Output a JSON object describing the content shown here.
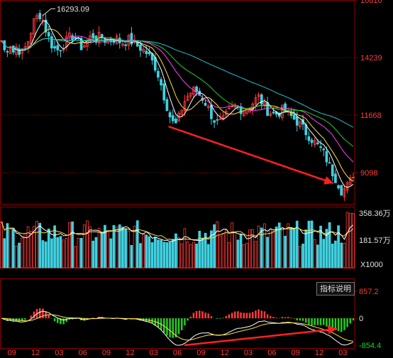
{
  "theme": {
    "background": "#000000",
    "frame": "#8b0000",
    "grid": "#8b0000",
    "up": "#ff3b3b",
    "down": "#40d0e0",
    "axis_text": "#ff3b3b",
    "axis_text_alt": "#e0e0e0",
    "arrow": "#ff2020",
    "ma_colors": [
      "#ffffff",
      "#ffe040",
      "#ff40ff",
      "#20d020",
      "#20c0d0"
    ],
    "macd_colors": [
      "#ffffff",
      "#ffe040"
    ],
    "hist_pos": "#ff3b3b",
    "hist_neg": "#20d020"
  },
  "indicator_button": {
    "label": "指标说明"
  },
  "chart_data": [
    {
      "type": "candlestick",
      "panel": "price",
      "y_ticks": [
        "16810",
        "14239",
        "11668",
        "9098"
      ],
      "y_tick_values": [
        16810,
        14239,
        11668,
        9098
      ],
      "ylim": [
        7700,
        16810
      ],
      "peak_label": "16293.09",
      "peak_value": 16293.09,
      "trend": [
        15000,
        14400,
        14950,
        14500,
        14800,
        14300,
        14700,
        15100,
        15800,
        16050,
        16200,
        15600,
        15100,
        14700,
        14550,
        14700,
        14900,
        15100,
        15200,
        15050,
        14700,
        14800,
        15050,
        15250,
        15050,
        15200,
        15050,
        14950,
        15050,
        15100,
        14950,
        14900,
        15050,
        14950,
        14800,
        14700,
        14550,
        14400,
        14100,
        13800,
        13300,
        12600,
        12000,
        11400,
        11200,
        11600,
        12200,
        12500,
        12700,
        12800,
        12600,
        12400,
        12100,
        11700,
        11400,
        11300,
        11400,
        11700,
        11900,
        12100,
        12000,
        11900,
        11950,
        12100,
        12300,
        12500,
        12200,
        11900,
        11800,
        11700,
        11750,
        11900,
        11800,
        11650,
        11500,
        11350,
        11150,
        10900,
        10700,
        10500,
        10300,
        10100,
        9800,
        9400,
        9000,
        8700,
        8300,
        8400,
        8600,
        9050
      ],
      "ma_period": [
        5,
        10,
        20,
        30,
        60
      ]
    },
    {
      "type": "bar",
      "panel": "volume",
      "y_ticks": [
        "358.36万",
        "181.57万"
      ],
      "y_tick_values": [
        358.36,
        181.57
      ],
      "unit_label": "X1000",
      "ylim": [
        0,
        400
      ]
    },
    {
      "type": "bar",
      "panel": "macd",
      "y_ticks": [
        "857.2",
        "0",
        "-854.4"
      ],
      "y_tick_values": [
        857.2,
        0,
        -854.4
      ],
      "ylim": [
        -854.4,
        857.2
      ]
    }
  ],
  "x_axis": {
    "labels": [
      "09",
      "12",
      "03",
      "06",
      "09",
      "12",
      "03",
      "06",
      "09",
      "12",
      "03",
      "06",
      "09",
      "12",
      "03"
    ]
  }
}
